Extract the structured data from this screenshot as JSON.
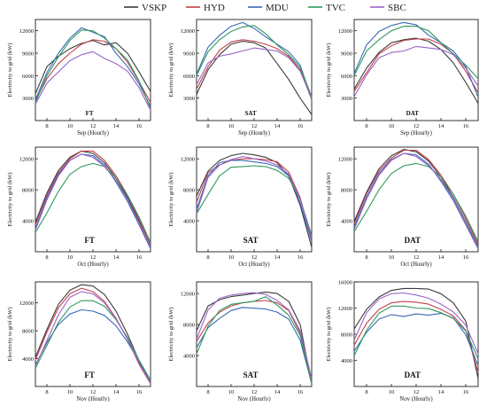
{
  "legend": [
    {
      "name": "VSKP",
      "color": "#3a3a3a"
    },
    {
      "name": "HYD",
      "color": "#c0404a"
    },
    {
      "name": "MDU",
      "color": "#3868b8"
    },
    {
      "name": "TVC",
      "color": "#2e9a5a"
    },
    {
      "name": "SBC",
      "color": "#9a62c8"
    }
  ],
  "chart_data": [
    {
      "type": "line",
      "mode": "FT",
      "xlabel": "Sep (Hourly)",
      "ylabel": "Electricity to grid (kW)",
      "xlim": [
        7,
        17
      ],
      "ylim": [
        0,
        13500
      ],
      "xticks": [
        8,
        10,
        12,
        14,
        16
      ],
      "yticks": [
        3000,
        6000,
        9000,
        12000
      ],
      "x": [
        7,
        8,
        9,
        10,
        11,
        12,
        13,
        14,
        15,
        16,
        17
      ],
      "series": [
        {
          "name": "VSKP",
          "values": [
            3600,
            7200,
            8600,
            9600,
            10300,
            10700,
            10100,
            10400,
            9000,
            6500,
            3900
          ]
        },
        {
          "name": "HYD",
          "values": [
            2600,
            5600,
            7600,
            9000,
            10200,
            10800,
            10600,
            9600,
            7800,
            5200,
            2400
          ]
        },
        {
          "name": "MDU",
          "values": [
            2800,
            6400,
            9000,
            11000,
            12400,
            11800,
            11200,
            9000,
            7200,
            4900,
            1900
          ]
        },
        {
          "name": "TVC",
          "values": [
            2400,
            6000,
            8500,
            10700,
            12100,
            12000,
            11000,
            9600,
            8100,
            5300,
            1600
          ]
        },
        {
          "name": "SBC",
          "values": [
            2200,
            5000,
            6500,
            8000,
            8800,
            9200,
            8300,
            7600,
            6600,
            4400,
            1400
          ]
        }
      ]
    },
    {
      "type": "line",
      "mode": "SAT",
      "xlabel": "Sep (Hourly)",
      "ylabel": "Electricity to grid (kW)",
      "xlim": [
        7,
        17
      ],
      "ylim": [
        0,
        13500
      ],
      "xticks": [
        8,
        10,
        12,
        14,
        16
      ],
      "yticks": [
        3000,
        6000,
        9000,
        12000
      ],
      "x": [
        7,
        8,
        9,
        10,
        11,
        12,
        13,
        14,
        15,
        16,
        17
      ],
      "series": [
        {
          "name": "VSKP",
          "values": [
            3500,
            6800,
            8800,
            10200,
            10600,
            10400,
            9700,
            7600,
            5500,
            3000,
            800
          ]
        },
        {
          "name": "HYD",
          "values": [
            4200,
            7200,
            9400,
            10500,
            10800,
            10600,
            10200,
            9600,
            8600,
            6800,
            2800
          ]
        },
        {
          "name": "MDU",
          "values": [
            6200,
            9800,
            11400,
            12600,
            13100,
            12300,
            11200,
            10200,
            9200,
            7400,
            2900
          ]
        },
        {
          "name": "TVC",
          "values": [
            6000,
            9200,
            10800,
            11900,
            12500,
            12700,
            11600,
            10100,
            8800,
            7100,
            3200
          ]
        },
        {
          "name": "SBC",
          "values": [
            4800,
            7700,
            8600,
            8900,
            9300,
            9700,
            9500,
            9300,
            8400,
            6600,
            3000
          ]
        }
      ]
    },
    {
      "type": "line",
      "mode": "DAT",
      "xlabel": "Sep (Hourly)",
      "ylabel": "Electricity to grid (kW)",
      "xlim": [
        7,
        17
      ],
      "ylim": [
        0,
        13500
      ],
      "xticks": [
        8,
        10,
        12,
        14,
        16
      ],
      "yticks": [
        3000,
        6000,
        9000,
        12000
      ],
      "x": [
        7,
        8,
        9,
        10,
        11,
        12,
        13,
        14,
        15,
        16,
        17
      ],
      "series": [
        {
          "name": "VSKP",
          "values": [
            4200,
            7000,
            9100,
            10400,
            10800,
            11000,
            10600,
            9500,
            7700,
            5100,
            2300
          ]
        },
        {
          "name": "HYD",
          "values": [
            3900,
            6400,
            8900,
            10000,
            10700,
            10900,
            10900,
            10200,
            8900,
            6600,
            3700
          ]
        },
        {
          "name": "MDU",
          "values": [
            6300,
            10100,
            11900,
            12700,
            13100,
            12800,
            11400,
            10400,
            9300,
            7200,
            3100
          ]
        },
        {
          "name": "TVC",
          "values": [
            6000,
            9300,
            10800,
            12000,
            12600,
            12600,
            12000,
            10400,
            8900,
            7400,
            5600
          ]
        },
        {
          "name": "SBC",
          "values": [
            3200,
            6100,
            8400,
            9100,
            9300,
            9900,
            9700,
            9500,
            8800,
            7000,
            4600
          ]
        }
      ]
    },
    {
      "type": "line",
      "mode": "FT",
      "xlabel": "Oct (Hourly)",
      "ylabel": "Electricity to grid (kW)",
      "xlim": [
        7,
        17
      ],
      "ylim": [
        0,
        13500
      ],
      "xticks": [
        8,
        10,
        12,
        14,
        16
      ],
      "yticks": [
        4000,
        8000,
        12000
      ],
      "x": [
        7,
        8,
        9,
        10,
        11,
        12,
        13,
        14,
        15,
        16,
        17
      ],
      "series": [
        {
          "name": "VSKP",
          "values": [
            3800,
            7600,
            10500,
            12200,
            13000,
            12700,
            11500,
            9500,
            7000,
            4000,
            900
          ]
        },
        {
          "name": "HYD",
          "values": [
            3500,
            7300,
            10200,
            12000,
            13000,
            13000,
            11800,
            9800,
            7300,
            4200,
            900
          ]
        },
        {
          "name": "MDU",
          "values": [
            3000,
            7000,
            10000,
            11800,
            12600,
            12400,
            11200,
            9000,
            6500,
            3500,
            400
          ]
        },
        {
          "name": "TVC",
          "values": [
            2500,
            5000,
            7800,
            10000,
            11000,
            11400,
            11000,
            9500,
            7300,
            4500,
            1200
          ]
        },
        {
          "name": "SBC",
          "values": [
            2800,
            6700,
            9800,
            11800,
            12600,
            12200,
            11000,
            9200,
            6800,
            3700,
            600
          ]
        }
      ]
    },
    {
      "type": "line",
      "mode": "SAT",
      "xlabel": "Oct (Hourly)",
      "ylabel": "Electricity to grid (kW)",
      "xlim": [
        7,
        17
      ],
      "ylim": [
        0,
        13500
      ],
      "xticks": [
        8,
        10,
        12,
        14,
        16
      ],
      "yticks": [
        4000,
        8000,
        12000
      ],
      "x": [
        7,
        8,
        9,
        10,
        11,
        12,
        13,
        14,
        15,
        16,
        17
      ],
      "series": [
        {
          "name": "VSKP",
          "values": [
            7200,
            10400,
            11800,
            12400,
            12700,
            12500,
            12200,
            11500,
            9800,
            6000,
            600
          ]
        },
        {
          "name": "HYD",
          "values": [
            6400,
            10200,
            11200,
            11800,
            12000,
            12000,
            11900,
            11600,
            10300,
            7000,
            1500
          ]
        },
        {
          "name": "MDU",
          "values": [
            5500,
            9800,
            11500,
            11800,
            11800,
            11600,
            11400,
            11000,
            9800,
            6300,
            1300
          ]
        },
        {
          "name": "TVC",
          "values": [
            4900,
            7400,
            9800,
            10900,
            11000,
            11100,
            11000,
            10500,
            9500,
            6800,
            2100
          ]
        },
        {
          "name": "SBC",
          "values": [
            5000,
            9600,
            11200,
            11900,
            12300,
            12000,
            11700,
            11200,
            10000,
            6800,
            1800
          ]
        }
      ]
    },
    {
      "type": "line",
      "mode": "DAT",
      "xlabel": "Oct (Hourly)",
      "ylabel": "Electricity to grid (kW)",
      "xlim": [
        7,
        17
      ],
      "ylim": [
        0,
        13500
      ],
      "xticks": [
        8,
        10,
        12,
        14,
        16
      ],
      "yticks": [
        4000,
        8000,
        12000
      ],
      "x": [
        7,
        8,
        9,
        10,
        11,
        12,
        13,
        14,
        15,
        16,
        17
      ],
      "series": [
        {
          "name": "VSKP",
          "values": [
            3900,
            7700,
            10700,
            12400,
            13200,
            12900,
            11700,
            9600,
            7000,
            3900,
            700
          ]
        },
        {
          "name": "HYD",
          "values": [
            3600,
            7500,
            10400,
            12100,
            13100,
            13100,
            11900,
            9900,
            7400,
            4300,
            1000
          ]
        },
        {
          "name": "MDU",
          "values": [
            3200,
            7100,
            10100,
            11900,
            12700,
            12500,
            11300,
            9100,
            6600,
            3500,
            400
          ]
        },
        {
          "name": "TVC",
          "values": [
            2600,
            5200,
            8000,
            10100,
            11100,
            11400,
            11000,
            9600,
            7400,
            4600,
            1300
          ]
        },
        {
          "name": "SBC",
          "values": [
            2900,
            6800,
            9900,
            11800,
            12700,
            12300,
            11100,
            9300,
            6900,
            3800,
            600
          ]
        }
      ]
    },
    {
      "type": "line",
      "mode": "FT",
      "xlabel": "Nov (Hourly)",
      "ylabel": "Electricity to grid (kW)",
      "xlim": [
        7,
        17
      ],
      "ylim": [
        0,
        15000
      ],
      "xticks": [
        8,
        10,
        12,
        14,
        16
      ],
      "yticks": [
        4000,
        8000,
        12000
      ],
      "x": [
        7,
        8,
        9,
        10,
        11,
        12,
        13,
        14,
        15,
        16,
        17
      ],
      "series": [
        {
          "name": "VSKP",
          "values": [
            4200,
            8200,
            11800,
            13800,
            14600,
            14400,
            13200,
            10800,
            7500,
            3700,
            500
          ]
        },
        {
          "name": "HYD",
          "values": [
            3800,
            7800,
            11300,
            13300,
            14100,
            13600,
            12200,
            9800,
            6800,
            3200,
            400
          ]
        },
        {
          "name": "MDU",
          "values": [
            3100,
            6300,
            8900,
            10400,
            11000,
            10800,
            10200,
            8700,
            6400,
            3600,
            600
          ]
        },
        {
          "name": "TVC",
          "values": [
            2600,
            5900,
            9200,
            11400,
            12300,
            12300,
            11500,
            9600,
            7000,
            3800,
            900
          ]
        },
        {
          "name": "SBC",
          "values": [
            2900,
            6600,
            10300,
            12800,
            13600,
            13300,
            12000,
            9700,
            6800,
            3400,
            500
          ]
        }
      ]
    },
    {
      "type": "line",
      "mode": "SAT",
      "xlabel": "Nov (Hourly)",
      "ylabel": "Electricity to grid (kW)",
      "xlim": [
        7,
        17
      ],
      "ylim": [
        0,
        13500
      ],
      "xticks": [
        8,
        10,
        12,
        14,
        16
      ],
      "yticks": [
        4000,
        8000,
        12000
      ],
      "x": [
        7,
        8,
        9,
        10,
        11,
        12,
        13,
        14,
        15,
        16,
        17
      ],
      "series": [
        {
          "name": "VSKP",
          "values": [
            7200,
            10400,
            11200,
            11600,
            11800,
            12000,
            12200,
            12000,
            11000,
            8000,
            400
          ]
        },
        {
          "name": "HYD",
          "values": [
            5800,
            8200,
            9600,
            10400,
            10800,
            11000,
            11100,
            10800,
            9800,
            6900,
            500
          ]
        },
        {
          "name": "MDU",
          "values": [
            5000,
            7600,
            8800,
            9800,
            10200,
            10100,
            10000,
            9600,
            8700,
            6000,
            400
          ]
        },
        {
          "name": "TVC",
          "values": [
            4200,
            7800,
            9800,
            10600,
            10800,
            11000,
            11600,
            10500,
            9200,
            6600,
            300
          ]
        },
        {
          "name": "SBC",
          "values": [
            6100,
            9900,
            11400,
            11800,
            12000,
            12100,
            11900,
            11100,
            9900,
            7200,
            1000
          ]
        }
      ]
    },
    {
      "type": "line",
      "mode": "DAT",
      "xlabel": "Nov (Hourly)",
      "ylabel": "Electricity to grid (kW)",
      "xlim": [
        7,
        17
      ],
      "ylim": [
        0,
        16000
      ],
      "xticks": [
        8,
        10,
        12,
        14,
        16
      ],
      "yticks": [
        4000,
        8000,
        12000,
        16000
      ],
      "x": [
        7,
        8,
        9,
        10,
        11,
        12,
        13,
        14,
        15,
        16,
        17
      ],
      "series": [
        {
          "name": "VSKP",
          "values": [
            8800,
            11800,
            13700,
            14700,
            15000,
            15000,
            14900,
            14200,
            12800,
            10000,
            1200
          ]
        },
        {
          "name": "HYD",
          "values": [
            6300,
            9700,
            11800,
            12800,
            13000,
            12900,
            12600,
            11800,
            10800,
            8600,
            2200
          ]
        },
        {
          "name": "MDU",
          "values": [
            5400,
            8300,
            10300,
            11000,
            10700,
            11100,
            10900,
            11200,
            10500,
            7900,
            3200
          ]
        },
        {
          "name": "TVC",
          "values": [
            4700,
            8600,
            11200,
            12300,
            12300,
            12000,
            11900,
            11300,
            10400,
            8500,
            4200
          ]
        },
        {
          "name": "SBC",
          "values": [
            7100,
            11300,
            13400,
            14200,
            14300,
            14000,
            13500,
            12600,
            11400,
            9400,
            5000
          ]
        }
      ]
    }
  ]
}
